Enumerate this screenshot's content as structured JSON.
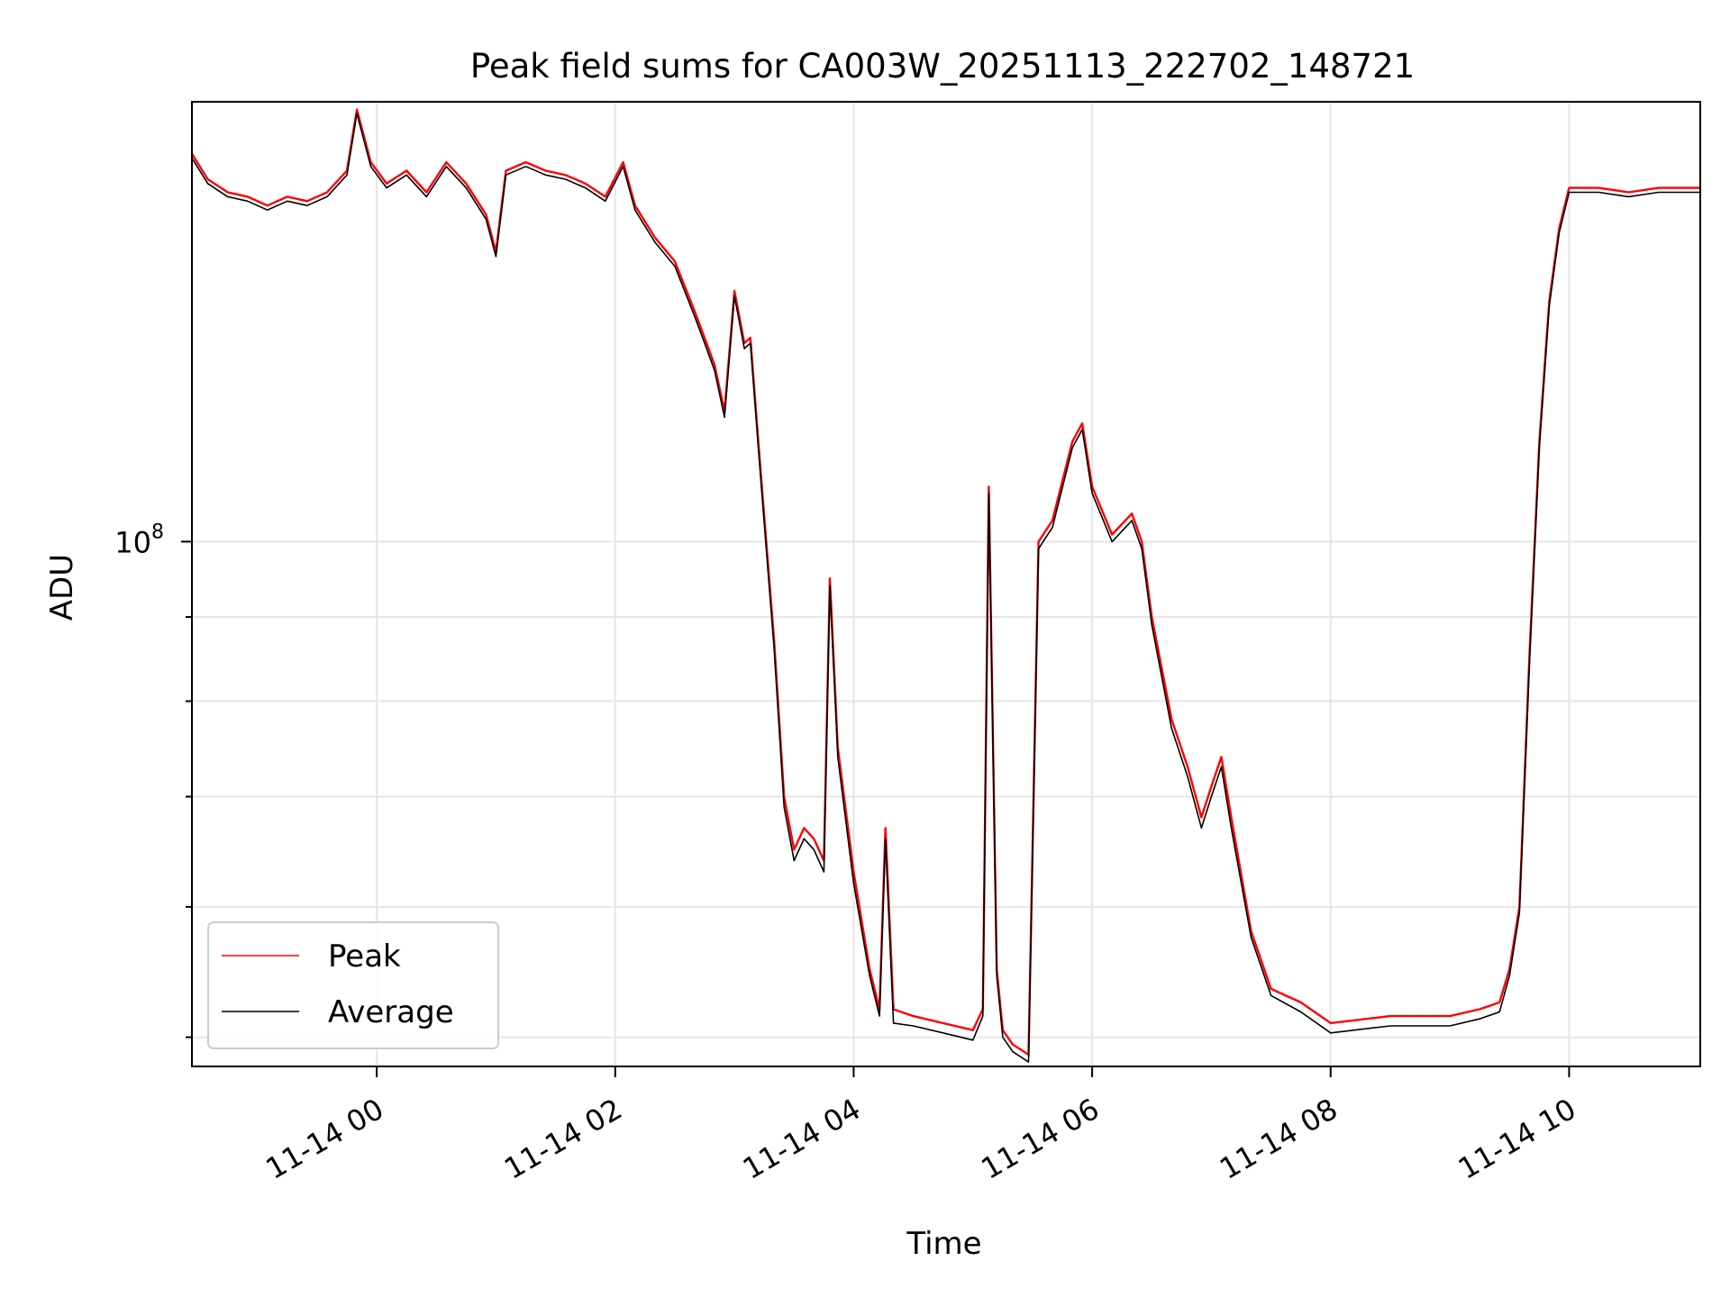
{
  "chart_data": {
    "type": "line",
    "title": "Peak field sums for CA003W_20251113_222702_148721",
    "xlabel": "Time",
    "ylabel": "ADU",
    "y_scale": "log",
    "xlim": [
      "2025-11-13T22:27",
      "2025-11-14T11:06"
    ],
    "ylim": [
      48000000,
      185000000
    ],
    "x_ticks": [
      {
        "t": "2025-11-14T00:00",
        "label": "11-14 00"
      },
      {
        "t": "2025-11-14T02:00",
        "label": "11-14 02"
      },
      {
        "t": "2025-11-14T04:00",
        "label": "11-14 04"
      },
      {
        "t": "2025-11-14T06:00",
        "label": "11-14 06"
      },
      {
        "t": "2025-11-14T08:00",
        "label": "11-14 08"
      },
      {
        "t": "2025-11-14T10:00",
        "label": "11-14 10"
      }
    ],
    "y_major_ticks": [
      {
        "v": 100000000,
        "base": "10",
        "exp": "8"
      }
    ],
    "y_minor_ticks": [
      50000000,
      60000000,
      70000000,
      80000000,
      90000000
    ],
    "grid": true,
    "legend_position": "lower-left",
    "series": [
      {
        "name": "Peak",
        "color": "#ff0000",
        "x": [
          "2025-11-13T22:27",
          "2025-11-13T22:35",
          "2025-11-13T22:45",
          "2025-11-13T22:55",
          "2025-11-13T23:05",
          "2025-11-13T23:15",
          "2025-11-13T23:25",
          "2025-11-13T23:35",
          "2025-11-13T23:45",
          "2025-11-13T23:50",
          "2025-11-13T23:57",
          "2025-11-14T00:05",
          "2025-11-14T00:15",
          "2025-11-14T00:25",
          "2025-11-14T00:35",
          "2025-11-14T00:45",
          "2025-11-14T00:55",
          "2025-11-14T01:00",
          "2025-11-14T01:05",
          "2025-11-14T01:15",
          "2025-11-14T01:25",
          "2025-11-14T01:35",
          "2025-11-14T01:45",
          "2025-11-14T01:55",
          "2025-11-14T02:04",
          "2025-11-14T02:10",
          "2025-11-14T02:20",
          "2025-11-14T02:30",
          "2025-11-14T02:40",
          "2025-11-14T02:45",
          "2025-11-14T02:50",
          "2025-11-14T02:55",
          "2025-11-14T03:00",
          "2025-11-14T03:05",
          "2025-11-14T03:08",
          "2025-11-14T03:12",
          "2025-11-14T03:16",
          "2025-11-14T03:20",
          "2025-11-14T03:25",
          "2025-11-14T03:30",
          "2025-11-14T03:35",
          "2025-11-14T03:40",
          "2025-11-14T03:45",
          "2025-11-14T03:48",
          "2025-11-14T03:52",
          "2025-11-14T04:00",
          "2025-11-14T04:08",
          "2025-11-14T04:13",
          "2025-11-14T04:16",
          "2025-11-14T04:20",
          "2025-11-14T04:30",
          "2025-11-14T04:45",
          "2025-11-14T05:00",
          "2025-11-14T05:05",
          "2025-11-14T05:08",
          "2025-11-14T05:12",
          "2025-11-14T05:15",
          "2025-11-14T05:20",
          "2025-11-14T05:28",
          "2025-11-14T05:33",
          "2025-11-14T05:40",
          "2025-11-14T05:50",
          "2025-11-14T05:55",
          "2025-11-14T06:00",
          "2025-11-14T06:10",
          "2025-11-14T06:20",
          "2025-11-14T06:25",
          "2025-11-14T06:30",
          "2025-11-14T06:40",
          "2025-11-14T06:48",
          "2025-11-14T06:55",
          "2025-11-14T07:00",
          "2025-11-14T07:05",
          "2025-11-14T07:10",
          "2025-11-14T07:20",
          "2025-11-14T07:30",
          "2025-11-14T07:45",
          "2025-11-14T08:00",
          "2025-11-14T08:30",
          "2025-11-14T09:00",
          "2025-11-14T09:15",
          "2025-11-14T09:25",
          "2025-11-14T09:30",
          "2025-11-14T09:35",
          "2025-11-14T09:40",
          "2025-11-14T09:45",
          "2025-11-14T09:50",
          "2025-11-14T09:55",
          "2025-11-14T10:00",
          "2025-11-14T10:15",
          "2025-11-14T10:30",
          "2025-11-14T10:45",
          "2025-11-14T11:06"
        ],
        "values": [
          172000000,
          166000000,
          163000000,
          162000000,
          160000000,
          162000000,
          161000000,
          163000000,
          168000000,
          183000000,
          170000000,
          165000000,
          168000000,
          163000000,
          170000000,
          165000000,
          158000000,
          150000000,
          168000000,
          170000000,
          168000000,
          167000000,
          165000000,
          162000000,
          170000000,
          160000000,
          153000000,
          148000000,
          138000000,
          133000000,
          128000000,
          120000000,
          142000000,
          132000000,
          133000000,
          115000000,
          100000000,
          87000000,
          70000000,
          65000000,
          67000000,
          66000000,
          64000000,
          95000000,
          75000000,
          63000000,
          55000000,
          52000000,
          67000000,
          52000000,
          51500000,
          51000000,
          50500000,
          52000000,
          108000000,
          55000000,
          50500000,
          49500000,
          48800000,
          100000000,
          103000000,
          115000000,
          118000000,
          108000000,
          101000000,
          104000000,
          100000000,
          90000000,
          78000000,
          73000000,
          68000000,
          71000000,
          74000000,
          68000000,
          58000000,
          53500000,
          52500000,
          51000000,
          51500000,
          51500000,
          52000000,
          52500000,
          55000000,
          60000000,
          85000000,
          115000000,
          140000000,
          155000000,
          164000000,
          164000000,
          163000000,
          164000000,
          164000000
        ]
      },
      {
        "name": "Average",
        "color": "#000000",
        "x": [
          "2025-11-13T22:27",
          "2025-11-13T22:35",
          "2025-11-13T22:45",
          "2025-11-13T22:55",
          "2025-11-13T23:05",
          "2025-11-13T23:15",
          "2025-11-13T23:25",
          "2025-11-13T23:35",
          "2025-11-13T23:45",
          "2025-11-13T23:50",
          "2025-11-13T23:57",
          "2025-11-14T00:05",
          "2025-11-14T00:15",
          "2025-11-14T00:25",
          "2025-11-14T00:35",
          "2025-11-14T00:45",
          "2025-11-14T00:55",
          "2025-11-14T01:00",
          "2025-11-14T01:05",
          "2025-11-14T01:15",
          "2025-11-14T01:25",
          "2025-11-14T01:35",
          "2025-11-14T01:45",
          "2025-11-14T01:55",
          "2025-11-14T02:04",
          "2025-11-14T02:10",
          "2025-11-14T02:20",
          "2025-11-14T02:30",
          "2025-11-14T02:40",
          "2025-11-14T02:45",
          "2025-11-14T02:50",
          "2025-11-14T02:55",
          "2025-11-14T03:00",
          "2025-11-14T03:05",
          "2025-11-14T03:08",
          "2025-11-14T03:12",
          "2025-11-14T03:16",
          "2025-11-14T03:20",
          "2025-11-14T03:25",
          "2025-11-14T03:30",
          "2025-11-14T03:35",
          "2025-11-14T03:40",
          "2025-11-14T03:45",
          "2025-11-14T03:48",
          "2025-11-14T03:52",
          "2025-11-14T04:00",
          "2025-11-14T04:08",
          "2025-11-14T04:13",
          "2025-11-14T04:16",
          "2025-11-14T04:20",
          "2025-11-14T04:30",
          "2025-11-14T04:45",
          "2025-11-14T05:00",
          "2025-11-14T05:05",
          "2025-11-14T05:08",
          "2025-11-14T05:12",
          "2025-11-14T05:15",
          "2025-11-14T05:20",
          "2025-11-14T05:28",
          "2025-11-14T05:33",
          "2025-11-14T05:40",
          "2025-11-14T05:50",
          "2025-11-14T05:55",
          "2025-11-14T06:00",
          "2025-11-14T06:10",
          "2025-11-14T06:20",
          "2025-11-14T06:25",
          "2025-11-14T06:30",
          "2025-11-14T06:40",
          "2025-11-14T06:48",
          "2025-11-14T06:55",
          "2025-11-14T07:00",
          "2025-11-14T07:05",
          "2025-11-14T07:10",
          "2025-11-14T07:20",
          "2025-11-14T07:30",
          "2025-11-14T07:45",
          "2025-11-14T08:00",
          "2025-11-14T08:30",
          "2025-11-14T09:00",
          "2025-11-14T09:15",
          "2025-11-14T09:25",
          "2025-11-14T09:30",
          "2025-11-14T09:35",
          "2025-11-14T09:40",
          "2025-11-14T09:45",
          "2025-11-14T09:50",
          "2025-11-14T09:55",
          "2025-11-14T10:00",
          "2025-11-14T10:15",
          "2025-11-14T10:30",
          "2025-11-14T10:45",
          "2025-11-14T11:06"
        ],
        "values": [
          171000000,
          165000000,
          162000000,
          161000000,
          159000000,
          161000000,
          160000000,
          162000000,
          167000000,
          182000000,
          169000000,
          164000000,
          167000000,
          162000000,
          169000000,
          164000000,
          157000000,
          149000000,
          167000000,
          169000000,
          167000000,
          166000000,
          164000000,
          161000000,
          169000000,
          159000000,
          152000000,
          147000000,
          137000000,
          132000000,
          127000000,
          119000000,
          141000000,
          131000000,
          132000000,
          114000000,
          99000000,
          86000000,
          69000000,
          64000000,
          66000000,
          65000000,
          63000000,
          94000000,
          74000000,
          62000000,
          54500000,
          51500000,
          66000000,
          51000000,
          50800000,
          50300000,
          49800000,
          51500000,
          107000000,
          54500000,
          50000000,
          49000000,
          48300000,
          99000000,
          102000000,
          114000000,
          117000000,
          107000000,
          100000000,
          103000000,
          99000000,
          89000000,
          77000000,
          72000000,
          67000000,
          70000000,
          73000000,
          67000000,
          57500000,
          53000000,
          51800000,
          50300000,
          50800000,
          50800000,
          51300000,
          51800000,
          54500000,
          59500000,
          84000000,
          114000000,
          139000000,
          154000000,
          163000000,
          163000000,
          162000000,
          163000000,
          163000000
        ]
      }
    ]
  }
}
